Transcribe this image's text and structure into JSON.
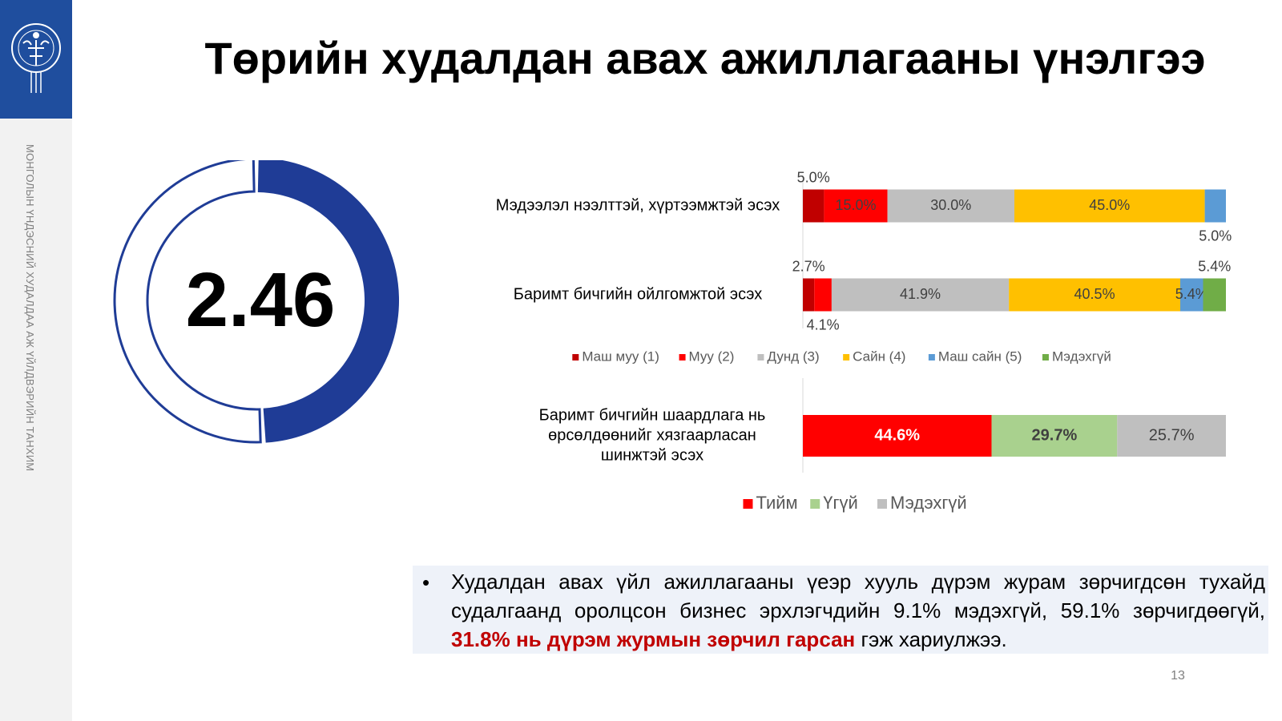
{
  "title": "Төрийн худалдан авах ажиллагааны үнэлгээ",
  "sidebar_text": "МОНГОЛЫН ҮНДЭСНИЙ ХУДАЛДАА АЖ ҮЙЛДВЭРИЙН ТАНХИМ",
  "score": {
    "value": "2.46",
    "fraction": 0.492,
    "color": "#1f3c96"
  },
  "chart_data": [
    {
      "type": "bar",
      "orientation": "horizontal",
      "stacked": true,
      "categories": [
        "Мэдээлэл нээлттэй, хүртээмжтэй эсэх",
        "Баримт бичгийн ойлгомжтой эсэх"
      ],
      "series": [
        {
          "name": "Маш муу (1)",
          "color": "#c00000",
          "values": [
            5.0,
            2.7
          ],
          "labels": [
            "5.0%",
            "2.7%"
          ]
        },
        {
          "name": "Муу (2)",
          "color": "#ff0000",
          "values": [
            15.0,
            4.1
          ],
          "labels": [
            "15.0%",
            "4.1%"
          ]
        },
        {
          "name": "Дунд (3)",
          "color": "#bfbfbf",
          "values": [
            30.0,
            41.9
          ],
          "labels": [
            "30.0%",
            "41.9%"
          ]
        },
        {
          "name": "Сайн (4)",
          "color": "#ffc000",
          "values": [
            45.0,
            40.5
          ],
          "labels": [
            "45.0%",
            "40.5%"
          ]
        },
        {
          "name": "Маш сайн (5)",
          "color": "#5b9bd5",
          "values": [
            5.0,
            5.4
          ],
          "labels": [
            "5.0%",
            "5.4%"
          ]
        },
        {
          "name": "Мэдэхгүй",
          "color": "#70ad47",
          "values": [
            0,
            5.4
          ],
          "labels": [
            "",
            "5.4%"
          ]
        }
      ],
      "xlim": [
        0,
        100
      ],
      "legend": "bottom"
    },
    {
      "type": "bar",
      "orientation": "horizontal",
      "stacked": true,
      "categories": [
        "Баримт бичгийн шаардлага нь өрсөлдөөнийг хязгаарласан шинжтэй эсэх"
      ],
      "series": [
        {
          "name": "Тийм",
          "color": "#ff0000",
          "values": [
            44.6
          ],
          "labels": [
            "44.6%"
          ]
        },
        {
          "name": "Үгүй",
          "color": "#a9d18e",
          "values": [
            29.7
          ],
          "labels": [
            "29.7%"
          ]
        },
        {
          "name": "Мэдэхгүй",
          "color": "#bfbfbf",
          "values": [
            25.7
          ],
          "labels": [
            "25.7%"
          ]
        }
      ],
      "xlim": [
        0,
        100
      ],
      "legend": "bottom"
    }
  ],
  "note": {
    "bullet": "•",
    "text_before": "Худалдан авах үйл ажиллагааны үеэр хууль дүрэм журам зөрчигдсөн тухайд судалгаанд оролцсон бизнес эрхлэгчдийн 9.1% мэдэхгүй, 59.1% зөрчигдөөгүй, ",
    "highlight": "31.8% нь дүрэм журмын зөрчил гарсан",
    "text_after": " гэж хариулжээ."
  },
  "page_number": "13"
}
